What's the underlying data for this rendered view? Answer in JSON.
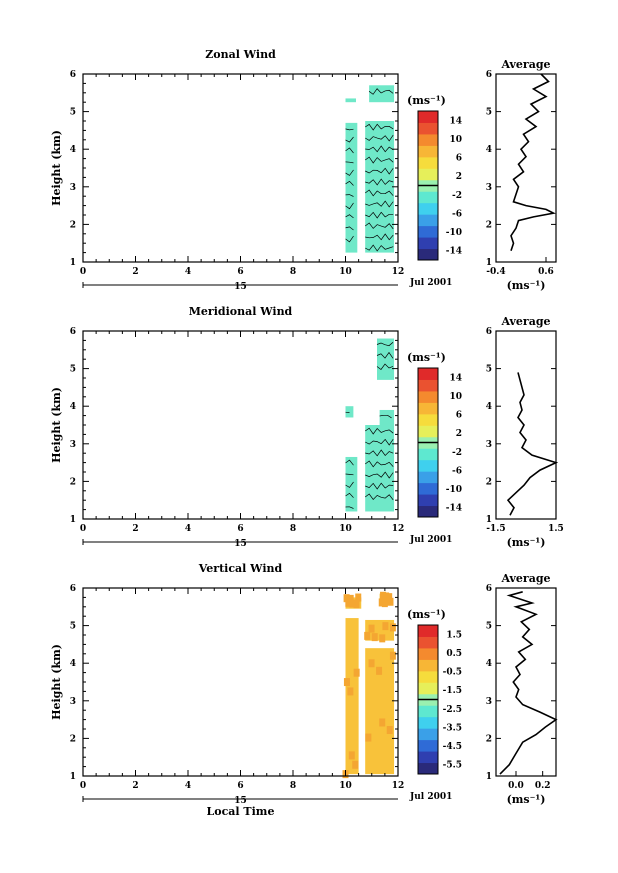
{
  "chart_data": [
    {
      "type": "heatmap",
      "title": "Zonal Wind",
      "ylabel": "Height (km)",
      "xlabel": "",
      "xlim": [
        0,
        12
      ],
      "ylim": [
        1,
        6
      ],
      "xticks": [
        "0",
        "2",
        "4",
        "6",
        "8",
        "10",
        "12"
      ],
      "yticks": [
        "1",
        "2",
        "3",
        "4",
        "5",
        "6"
      ],
      "date_ticks": [
        "15"
      ],
      "date_label": "Jul 2001",
      "colorbar_unit": "(ms⁻¹)",
      "colorbar_ticks": [
        "14",
        "10",
        "6",
        "2",
        "-2",
        "-6",
        "-10",
        "-14"
      ],
      "colorbar_range": [
        -16,
        16
      ],
      "blocks": [
        {
          "x0": 10.0,
          "x1": 10.45,
          "y0": 1.25,
          "y1": 4.7,
          "value": -1
        },
        {
          "x0": 10.75,
          "x1": 11.85,
          "y0": 1.25,
          "y1": 4.75,
          "value": -1
        },
        {
          "x0": 10.0,
          "x1": 10.4,
          "y0": 5.25,
          "y1": 5.35,
          "value": -1
        },
        {
          "x0": 10.9,
          "x1": 11.85,
          "y0": 5.25,
          "y1": 5.7,
          "value": -1
        }
      ],
      "average_title": "Average",
      "average_unit": "(ms⁻¹)",
      "average_xlim": [
        -0.4,
        0.8
      ],
      "average_xticks": [
        "-0.4",
        "0.6"
      ],
      "average_profile": {
        "height": [
          1.3,
          1.5,
          1.7,
          1.9,
          2.1,
          2.2,
          2.3,
          2.4,
          2.5,
          2.6,
          2.8,
          3.0,
          3.2,
          3.4,
          3.6,
          3.8,
          4.0,
          4.2,
          4.4,
          4.6,
          4.8,
          5.0,
          5.2,
          5.4,
          5.6,
          5.8,
          6.0
        ],
        "value": [
          -0.1,
          -0.05,
          -0.1,
          0.0,
          0.05,
          0.35,
          0.75,
          0.6,
          0.2,
          -0.05,
          0.0,
          0.05,
          -0.05,
          0.15,
          0.05,
          0.2,
          0.1,
          0.25,
          0.15,
          0.4,
          0.2,
          0.45,
          0.3,
          0.6,
          0.35,
          0.65,
          0.5
        ]
      }
    },
    {
      "type": "heatmap",
      "title": "Meridional Wind",
      "ylabel": "Height (km)",
      "xlabel": "",
      "xlim": [
        0,
        12
      ],
      "ylim": [
        1,
        6
      ],
      "xticks": [
        "0",
        "2",
        "4",
        "6",
        "8",
        "10",
        "12"
      ],
      "yticks": [
        "1",
        "2",
        "3",
        "4",
        "5",
        "6"
      ],
      "date_ticks": [
        "15"
      ],
      "date_label": "Jul 2001",
      "colorbar_unit": "(ms⁻¹)",
      "colorbar_ticks": [
        "14",
        "10",
        "6",
        "2",
        "-2",
        "-6",
        "-10",
        "-14"
      ],
      "colorbar_range": [
        -16,
        16
      ],
      "blocks": [
        {
          "x0": 10.0,
          "x1": 10.45,
          "y0": 1.2,
          "y1": 2.65,
          "value": -1
        },
        {
          "x0": 10.75,
          "x1": 11.85,
          "y0": 1.2,
          "y1": 3.5,
          "value": -1
        },
        {
          "x0": 11.3,
          "x1": 11.85,
          "y0": 3.5,
          "y1": 3.9,
          "value": -1
        },
        {
          "x0": 10.0,
          "x1": 10.3,
          "y0": 3.7,
          "y1": 4.0,
          "value": -1
        },
        {
          "x0": 11.2,
          "x1": 11.85,
          "y0": 4.7,
          "y1": 5.8,
          "value": -1
        }
      ],
      "average_title": "Average",
      "average_unit": "(ms⁻¹)",
      "average_xlim": [
        -1.5,
        1.5
      ],
      "average_xticks": [
        "-1.5",
        "1.5"
      ],
      "average_profile": {
        "height": [
          1.1,
          1.3,
          1.5,
          1.7,
          1.9,
          2.1,
          2.3,
          2.5,
          2.7,
          2.9,
          3.1,
          3.3,
          3.5,
          3.7,
          3.9,
          4.1,
          4.3,
          4.5,
          4.7,
          4.9
        ],
        "value": [
          -0.8,
          -0.6,
          -0.9,
          -0.5,
          -0.1,
          0.2,
          0.7,
          1.5,
          0.3,
          -0.2,
          0.0,
          -0.3,
          -0.1,
          -0.4,
          -0.2,
          -0.3,
          -0.1,
          -0.2,
          -0.3,
          -0.4
        ]
      }
    },
    {
      "type": "heatmap",
      "title": "Vertical Wind",
      "ylabel": "Height (km)",
      "xlabel": "Local Time",
      "xlim": [
        0,
        12
      ],
      "ylim": [
        1,
        6
      ],
      "xticks": [
        "0",
        "2",
        "4",
        "6",
        "8",
        "10",
        "12"
      ],
      "yticks": [
        "1",
        "2",
        "3",
        "4",
        "5",
        "6"
      ],
      "date_ticks": [
        "15"
      ],
      "date_label": "Jul 2001",
      "colorbar_unit": "(ms⁻¹)",
      "colorbar_ticks": [
        "1.5",
        "0.5",
        "-0.5",
        "-1.5",
        "-2.5",
        "-3.5",
        "-4.5",
        "-5.5"
      ],
      "colorbar_range": [
        -6,
        2
      ],
      "blocks": [
        {
          "x0": 10.0,
          "x1": 10.5,
          "y0": 1.05,
          "y1": 5.2,
          "value": 1.2
        },
        {
          "x0": 10.75,
          "x1": 11.85,
          "y0": 1.05,
          "y1": 4.4,
          "value": 1.2
        },
        {
          "x0": 10.75,
          "x1": 11.85,
          "y0": 4.6,
          "y1": 5.15,
          "value": 1.2
        },
        {
          "x0": 10.0,
          "x1": 10.6,
          "y0": 5.45,
          "y1": 5.75,
          "value": 1.2
        },
        {
          "x0": 11.3,
          "x1": 11.75,
          "y0": 5.55,
          "y1": 5.85,
          "value": 1.2
        }
      ],
      "average_title": "Average",
      "average_unit": "(ms⁻¹)",
      "average_xlim": [
        -0.15,
        0.3
      ],
      "average_xticks": [
        "0.0",
        "0.2"
      ],
      "average_profile": {
        "height": [
          1.05,
          1.3,
          1.6,
          1.9,
          2.1,
          2.3,
          2.5,
          2.7,
          2.9,
          3.1,
          3.3,
          3.5,
          3.7,
          3.9,
          4.1,
          4.3,
          4.5,
          4.7,
          4.9,
          5.1,
          5.3,
          5.5,
          5.6,
          5.8,
          5.9
        ],
        "value": [
          -0.12,
          -0.05,
          0.0,
          0.05,
          0.15,
          0.22,
          0.3,
          0.18,
          0.05,
          0.0,
          0.02,
          -0.02,
          0.03,
          0.0,
          0.07,
          0.02,
          0.12,
          0.05,
          0.1,
          0.04,
          0.15,
          0.0,
          0.12,
          -0.05,
          0.05
        ]
      }
    }
  ],
  "colors": {
    "scale": [
      "#2a2a7a",
      "#2f3fb0",
      "#2f6bd6",
      "#3aa0e8",
      "#3fd0ee",
      "#5ee8d0",
      "#9af0b0",
      "#e6ef5a",
      "#f6dc3c",
      "#f7b636",
      "#f48a2e",
      "#ea5230",
      "#e02a2a"
    ],
    "fill_wind": "#6fe8c8",
    "fill_vertical": "#f8c23a"
  }
}
